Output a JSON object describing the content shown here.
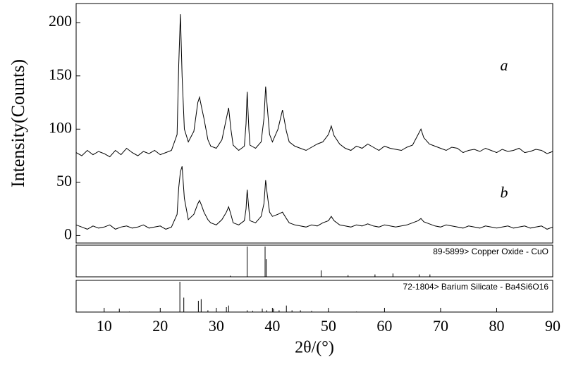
{
  "chart_data": [
    {
      "type": "line",
      "ylabel": "Intensity(Counts)",
      "xlim": [
        5,
        90
      ],
      "ylim": [
        -7,
        218
      ],
      "yticks": [
        0,
        50,
        100,
        150,
        200
      ],
      "x": [
        5,
        6,
        7,
        8,
        9,
        10,
        11,
        12,
        13,
        14,
        15,
        16,
        17,
        18,
        19,
        20,
        21,
        22,
        23,
        23.3,
        23.6,
        23.9,
        24.3,
        25,
        26,
        26.7,
        27,
        27.4,
        27.8,
        28.5,
        29,
        30,
        31,
        31.8,
        32.2,
        32.6,
        33,
        34,
        35,
        35.3,
        35.5,
        35.8,
        36,
        37,
        38,
        38.5,
        38.8,
        39.1,
        39.5,
        40,
        41,
        41.8,
        42.5,
        43,
        44,
        45,
        46,
        47,
        48,
        49,
        50,
        50.5,
        51,
        52,
        53,
        54,
        55,
        56,
        57,
        58,
        59,
        60,
        61,
        62,
        63,
        64,
        65,
        66,
        66.5,
        67,
        68,
        69,
        70,
        71,
        72,
        73,
        74,
        75,
        76,
        77,
        78,
        79,
        80,
        81,
        82,
        83,
        84,
        85,
        86,
        87,
        88,
        89,
        90
      ],
      "series": [
        {
          "name": "a",
          "color": "#000000",
          "values": [
            78,
            75,
            80,
            76,
            79,
            77,
            74,
            80,
            76,
            82,
            78,
            75,
            79,
            77,
            80,
            76,
            78,
            80,
            95,
            160,
            208,
            150,
            100,
            88,
            98,
            125,
            130,
            120,
            110,
            90,
            84,
            82,
            90,
            110,
            120,
            100,
            85,
            80,
            84,
            105,
            135,
            100,
            85,
            82,
            88,
            110,
            140,
            120,
            95,
            88,
            100,
            118,
            98,
            88,
            84,
            82,
            80,
            83,
            86,
            88,
            95,
            103,
            94,
            86,
            82,
            80,
            84,
            82,
            86,
            83,
            80,
            84,
            82,
            81,
            80,
            83,
            85,
            95,
            100,
            92,
            86,
            84,
            82,
            80,
            83,
            82,
            78,
            80,
            81,
            79,
            82,
            80,
            78,
            81,
            79,
            80,
            82,
            78,
            79,
            81,
            80,
            77,
            79
          ]
        },
        {
          "name": "b",
          "color": "#000000",
          "values": [
            10,
            8,
            6,
            9,
            7,
            8,
            10,
            6,
            8,
            9,
            7,
            8,
            10,
            7,
            8,
            9,
            6,
            8,
            20,
            45,
            60,
            65,
            35,
            15,
            20,
            30,
            33,
            28,
            22,
            15,
            12,
            10,
            15,
            22,
            27,
            20,
            12,
            10,
            14,
            25,
            43,
            25,
            14,
            12,
            18,
            30,
            52,
            38,
            22,
            18,
            20,
            22,
            16,
            12,
            10,
            9,
            8,
            10,
            9,
            12,
            14,
            18,
            14,
            10,
            9,
            8,
            10,
            9,
            11,
            9,
            8,
            10,
            9,
            8,
            9,
            10,
            12,
            14,
            16,
            13,
            11,
            9,
            8,
            10,
            9,
            8,
            7,
            9,
            8,
            7,
            9,
            8,
            7,
            8,
            9,
            7,
            8,
            9,
            7,
            8,
            9,
            6,
            8
          ]
        }
      ]
    },
    {
      "type": "stick",
      "title": "89-5899> Copper Oxide - CuO",
      "xlim": [
        5,
        90
      ],
      "ylim": [
        0,
        100
      ],
      "color": "#000000",
      "x": [
        32.5,
        35.5,
        38.7,
        38.9,
        48.7,
        53.5,
        58.3,
        61.5,
        66.2,
        68.1,
        72.4,
        75.2
      ],
      "values": [
        8,
        100,
        100,
        60,
        25,
        10,
        12,
        15,
        12,
        12,
        5,
        5
      ]
    },
    {
      "type": "stick",
      "title": "72-1804> Barium Silicate - Ba4Si6O16",
      "xlim": [
        5,
        90
      ],
      "ylim": [
        0,
        100
      ],
      "color": "#000000",
      "xlabel": "2θ/(°)",
      "xticks": [
        10,
        20,
        30,
        40,
        50,
        60,
        70,
        80,
        90
      ],
      "x": [
        12.7,
        14.5,
        19,
        23.5,
        24.2,
        26.8,
        27.3,
        28.5,
        31.8,
        32.2,
        35.5,
        36.5,
        38.2,
        39,
        40.2,
        41.2,
        42.5,
        43.5,
        45,
        47,
        50,
        55,
        60
      ],
      "values": [
        15,
        6,
        5,
        100,
        50,
        40,
        45,
        10,
        20,
        25,
        10,
        8,
        15,
        10,
        15,
        10,
        25,
        10,
        10,
        8,
        8,
        6,
        5
      ]
    }
  ]
}
